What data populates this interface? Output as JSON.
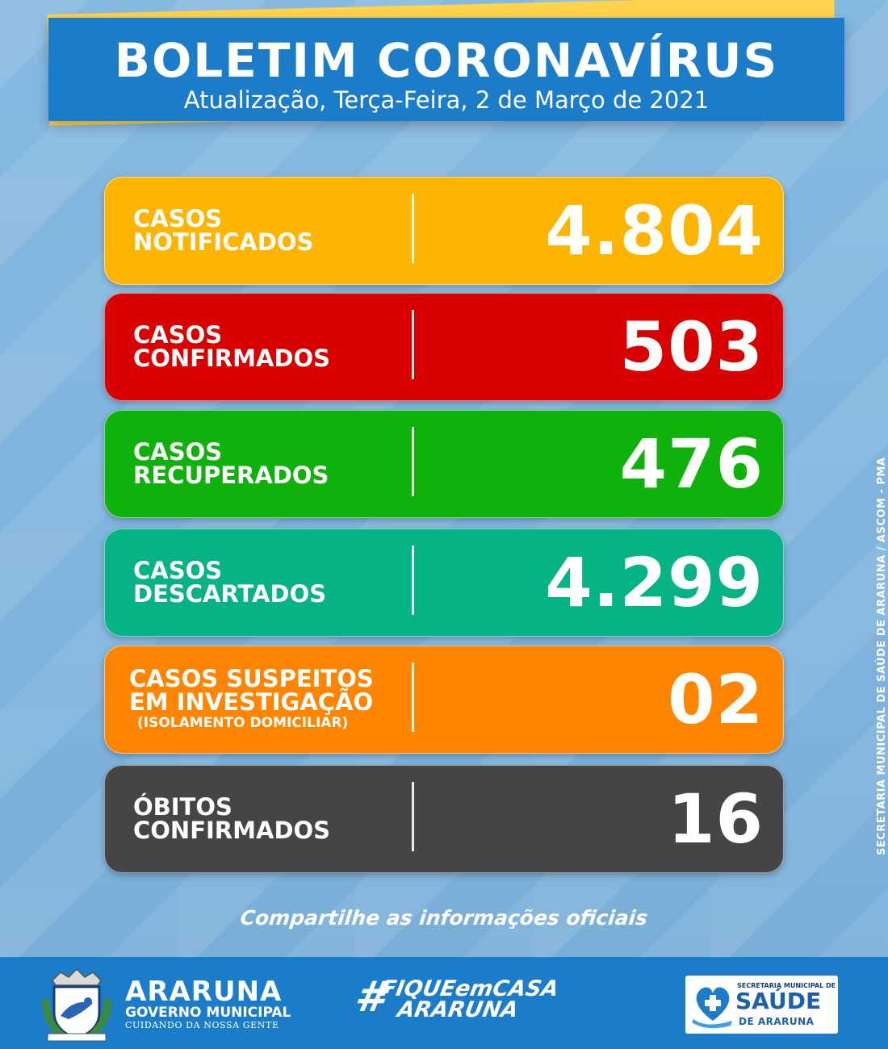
{
  "header": {
    "title": "BOLETIM CORONAVÍRUS",
    "subtitle": "Atualização, Terça-Feira, 2 de Março de 2021"
  },
  "cards": [
    {
      "line1": "CASOS",
      "line2": "NOTIFICADOS",
      "value": "4.804",
      "color": "#ffb400"
    },
    {
      "line1": "CASOS",
      "line2": "CONFIRMADOS",
      "value": "503",
      "color": "#d90000"
    },
    {
      "line1": "CASOS",
      "line2": "RECUPERADOS",
      "value": "476",
      "color": "#0fb20b"
    },
    {
      "line1": "CASOS",
      "line2": "DESCARTADOS",
      "value": "4.299",
      "color": "#05b386"
    },
    {
      "line1": "CASOS SUSPEITOS",
      "line2": "EM INVESTIGAÇÃO",
      "note": "(ISOLAMENTO DOMICILIAR)",
      "value": "02",
      "color": "#ff8400"
    },
    {
      "line1": "ÓBITOS",
      "line2": "CONFIRMADOS",
      "value": "16",
      "color": "#454545"
    }
  ],
  "share_text": "Compartilhe as informações oficiais",
  "credit": "SECRETARIA MUNICIPAL DE SAÚDE DE ARARUNA / ASCOM - PMA",
  "footer": {
    "city_name": "ARARUNA",
    "city_gov": "GOVERNO MUNICIPAL",
    "city_tagline": "CUIDANDO DA NOSSA GENTE",
    "hashtag_symbol": "#",
    "hashtag_line1": "FIQUEemCASA",
    "hashtag_line2": "ARARUNA",
    "saude_sec": "SECRETARIA MUNICIPAL DE",
    "saude_title": "SAÚDE",
    "saude_sub": "DE ARARUNA"
  }
}
